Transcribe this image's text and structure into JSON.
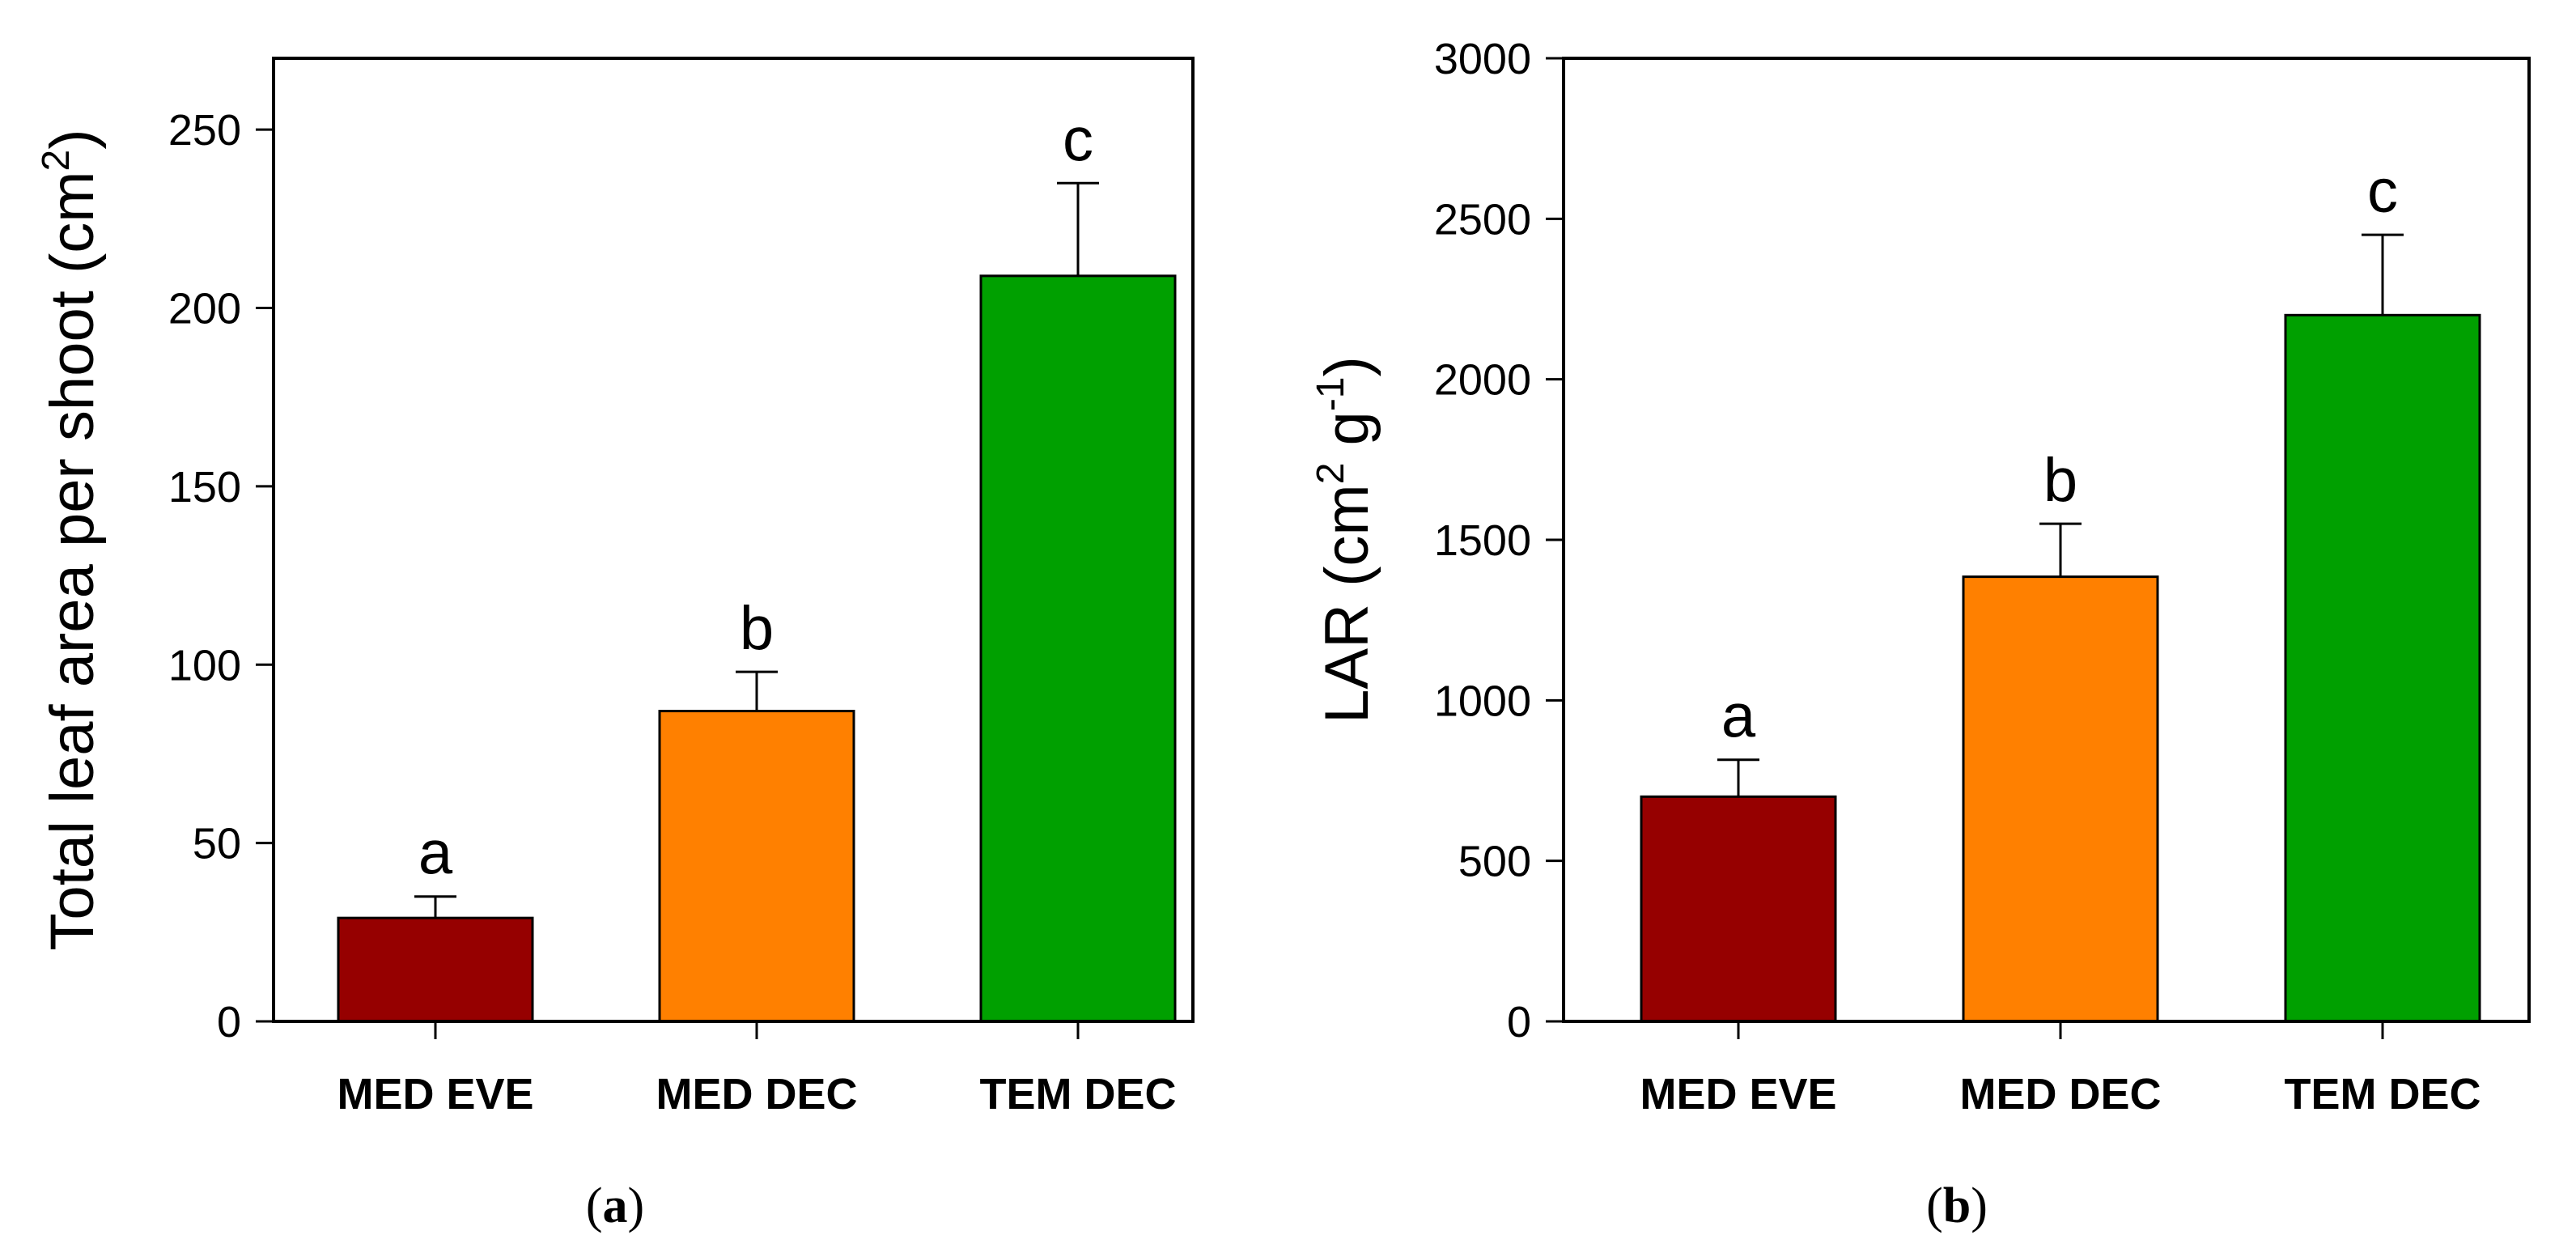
{
  "chart_data": [
    {
      "type": "bar",
      "title": "",
      "categories": [
        "MED EVE",
        "MED DEC",
        "TEM DEC"
      ],
      "values": [
        29,
        87,
        209
      ],
      "errors": [
        6,
        11,
        26
      ],
      "letters": [
        "a",
        "b",
        "c"
      ],
      "colors": [
        "#960000",
        "#ff8000",
        "#00a000"
      ],
      "ylabel_main": "Total leaf area per shoot (cm",
      "ylabel_sup": "2",
      "ylabel_close": ")",
      "ylim": [
        0,
        270
      ],
      "yticks": [
        0,
        50,
        100,
        150,
        200,
        250
      ],
      "ytick_labels": [
        "0",
        "50",
        "100",
        "150",
        "200",
        "250"
      ],
      "xlabel": "",
      "caption_open": "(",
      "caption_letter": "a",
      "caption_close": ")"
    },
    {
      "type": "bar",
      "title": "",
      "categories": [
        "MED EVE",
        "MED DEC",
        "TEM DEC"
      ],
      "values": [
        700,
        1385,
        2200
      ],
      "errors": [
        115,
        165,
        250
      ],
      "letters": [
        "a",
        "b",
        "c"
      ],
      "colors": [
        "#960000",
        "#ff8000",
        "#00a000"
      ],
      "ylabel_main": "LAR (cm",
      "ylabel_sup": "2",
      "ylabel_mid": " g",
      "ylabel_sup2": "-1",
      "ylabel_close": ")",
      "ylim": [
        0,
        3000
      ],
      "yticks": [
        0,
        500,
        1000,
        1500,
        2000,
        2500,
        3000
      ],
      "ytick_labels": [
        "0",
        "500",
        "1000",
        "1500",
        "2000",
        "2500",
        "3000"
      ],
      "xlabel": "",
      "caption_open": "(",
      "caption_letter": "b",
      "caption_close": ")"
    }
  ]
}
